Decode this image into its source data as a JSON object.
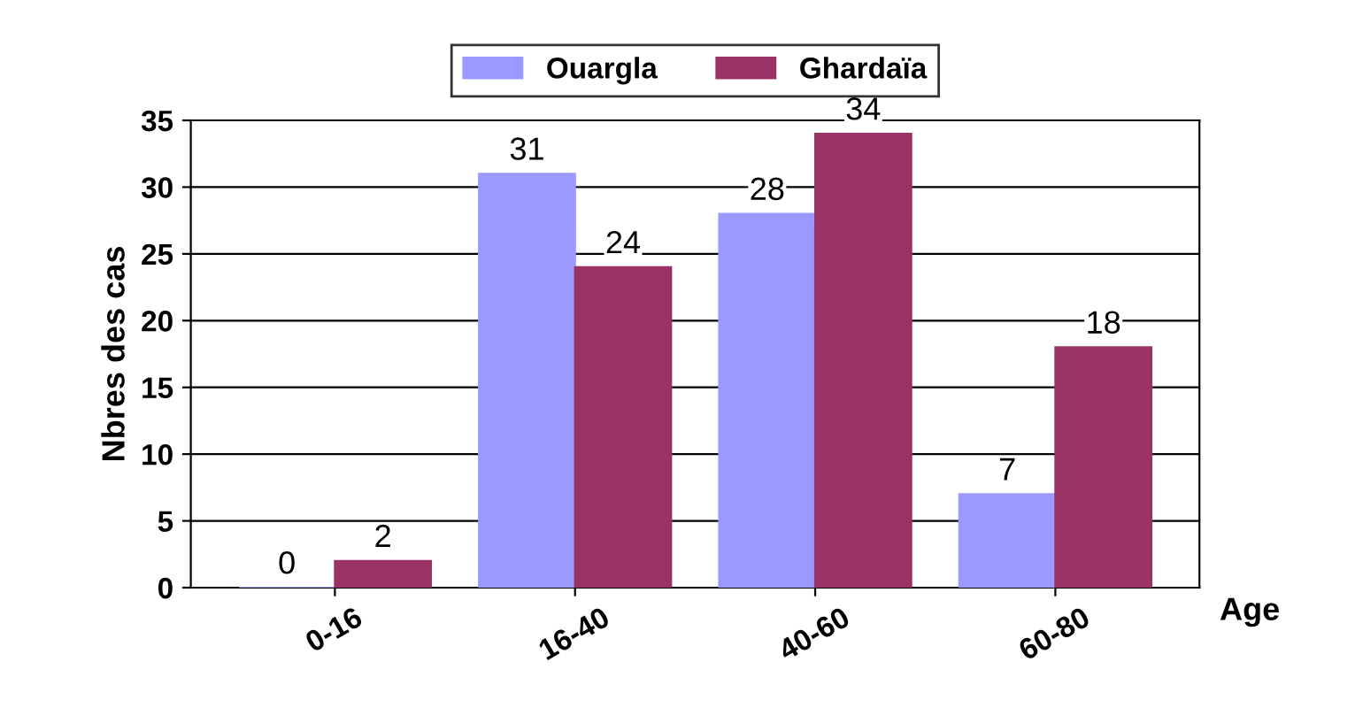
{
  "chart_data": {
    "type": "bar",
    "xlabel": "Age",
    "ylabel": "Nbres des cas",
    "categories": [
      "0-16",
      "16-40",
      "40-60",
      "60-80"
    ],
    "series": [
      {
        "name": "Ouargla",
        "color": "#9999ff",
        "values": [
          0,
          31,
          28,
          7
        ]
      },
      {
        "name": "Ghardaïa",
        "color": "#993366",
        "values": [
          2,
          24,
          34,
          18
        ]
      }
    ],
    "ylim": [
      0,
      35
    ],
    "yticks": [
      0,
      5,
      10,
      15,
      20,
      25,
      30,
      35
    ],
    "grid": "y",
    "legend": "top",
    "data_labels": true
  }
}
